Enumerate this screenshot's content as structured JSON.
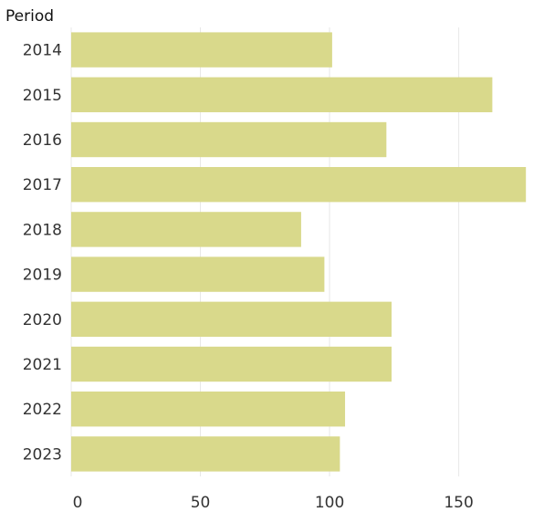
{
  "chart_data": {
    "type": "bar",
    "orientation": "horizontal",
    "y_axis_title": "Period",
    "categories": [
      "2014",
      "2015",
      "2016",
      "2017",
      "2018",
      "2019",
      "2020",
      "2021",
      "2022",
      "2023"
    ],
    "values": [
      101,
      163,
      122,
      176,
      89,
      98,
      124,
      124,
      106,
      104
    ],
    "x_ticks": [
      0,
      50,
      100,
      150
    ],
    "xlim": [
      0,
      183
    ],
    "grid": "vertical",
    "bar_color": "#d9d98b",
    "grid_color": "#e8e8e8"
  }
}
